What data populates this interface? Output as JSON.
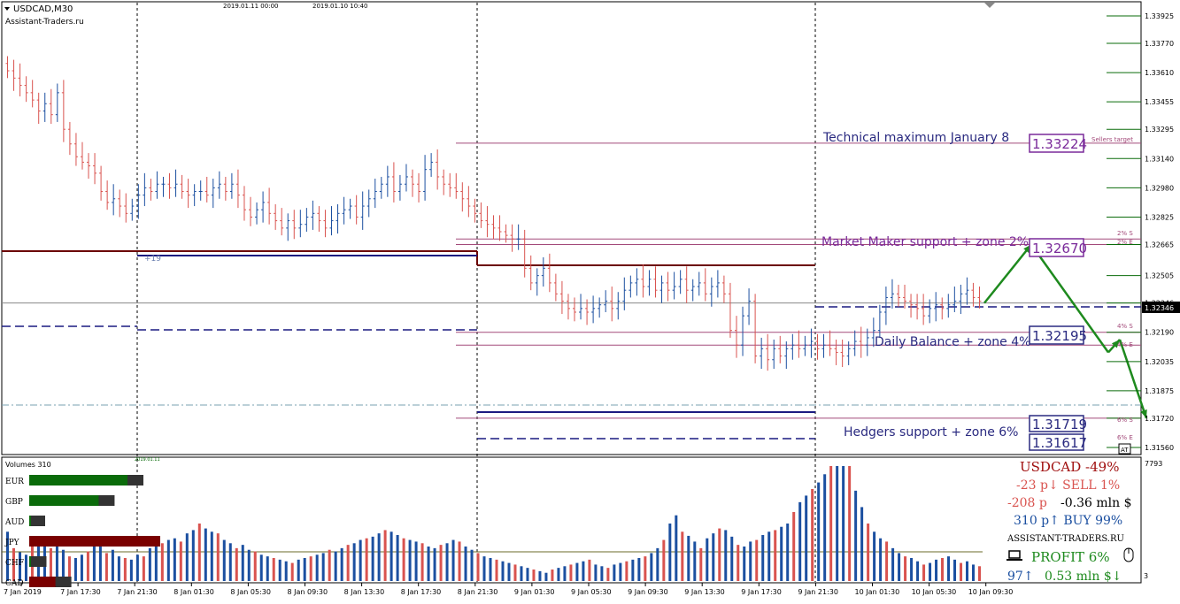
{
  "header": {
    "symbol": "USDCAD,M30",
    "site": "Assistant-Traders.ru",
    "date_mark_1": "2019.01.11 00:00",
    "date_mark_2": "2019.01.10 10:40",
    "sub_mark": "2019.01.11",
    "level_tag": "+19"
  },
  "chart_data": {
    "type": "candlestick",
    "symbol": "USDCAD",
    "timeframe": "M30",
    "ylim": [
      1.3148,
      1.3397
    ],
    "y_ticks": [
      1.3392,
      1.3377,
      1.3361,
      1.3345,
      1.333,
      1.3314,
      1.3298,
      1.3282,
      1.3267,
      1.325,
      1.3235,
      1.3219,
      1.3203,
      1.3187,
      1.3172,
      1.3156
    ],
    "y_tick_labels": [
      "1.33925",
      "1.33770",
      "1.33610",
      "1.33455",
      "1.33295",
      "1.33140",
      "1.32980",
      "1.32825",
      "1.32665",
      "1.32505",
      "1.32346",
      "1.32190",
      "1.32035",
      "1.31875",
      "1.31720",
      "1.31560"
    ],
    "current_price": "1.32346",
    "x_tick_labels": [
      "7 Jan 2019",
      "7 Jan 17:30",
      "7 Jan 21:30",
      "8 Jan 01:30",
      "8 Jan 05:30",
      "8 Jan 09:30",
      "8 Jan 13:30",
      "8 Jan 17:30",
      "8 Jan 21:30",
      "9 Jan 01:30",
      "9 Jan 05:30",
      "9 Jan 09:30",
      "9 Jan 13:30",
      "9 Jan 17:30",
      "9 Jan 21:30",
      "10 Jan 01:30",
      "10 Jan 05:30",
      "10 Jan 09:30"
    ],
    "closes": [
      1.3362,
      1.3358,
      1.3354,
      1.335,
      1.3346,
      1.334,
      1.3344,
      1.3338,
      1.335,
      1.333,
      1.3322,
      1.3315,
      1.3312,
      1.331,
      1.3306,
      1.3296,
      1.329,
      1.3292,
      1.3288,
      1.3284,
      1.3288,
      1.3294,
      1.3298,
      1.3296,
      1.33,
      1.33,
      1.3298,
      1.33,
      1.3296,
      1.3294,
      1.3296,
      1.3296,
      1.3294,
      1.3298,
      1.33,
      1.3296,
      1.33,
      1.3294,
      1.3286,
      1.3282,
      1.3286,
      1.329,
      1.3284,
      1.328,
      1.3276,
      1.328,
      1.3276,
      1.3278,
      1.3282,
      1.3284,
      1.328,
      1.3276,
      1.328,
      1.3284,
      1.3286,
      1.3288,
      1.3282,
      1.3288,
      1.3292,
      1.3296,
      1.33,
      1.3304,
      1.3296,
      1.33,
      1.3304,
      1.33,
      1.3296,
      1.3308,
      1.3312,
      1.3304,
      1.33,
      1.3298,
      1.3296,
      1.3292,
      1.3288,
      1.3284,
      1.328,
      1.3278,
      1.3276,
      1.3274,
      1.3272,
      1.327,
      1.327,
      1.3254,
      1.3246,
      1.325,
      1.3254,
      1.3246,
      1.324,
      1.3236,
      1.3232,
      1.323,
      1.3232,
      1.323,
      1.3232,
      1.3234,
      1.3236,
      1.3232,
      1.3236,
      1.3242,
      1.3246,
      1.3248,
      1.3244,
      1.3248,
      1.3242,
      1.3246,
      1.3242,
      1.3244,
      1.3248,
      1.3242,
      1.3244,
      1.3246,
      1.324,
      1.3244,
      1.3246,
      1.324,
      1.322,
      1.3212,
      1.3228,
      1.3236,
      1.3206,
      1.321,
      1.3204,
      1.321,
      1.3206,
      1.321,
      1.3212,
      1.321,
      1.3212,
      1.3214,
      1.321,
      1.3212,
      1.321,
      1.3208,
      1.3206,
      1.321,
      1.3214,
      1.3212,
      1.3216,
      1.322,
      1.323,
      1.3238,
      1.324,
      1.3238,
      1.3236,
      1.3234,
      1.3232,
      1.3228,
      1.3232,
      1.3234,
      1.3232,
      1.3234,
      1.3236,
      1.324,
      1.3242,
      1.3238,
      1.3236
    ],
    "levels": [
      {
        "label": "Technical maximum January 8",
        "price": "1.33224",
        "tag": "Sellers target",
        "color": "#a34a7a"
      },
      {
        "label": "Market Maker support + zone 2%",
        "price": "1.32670",
        "tag": "2% S",
        "tag2": "2% E",
        "color": "#a34a7a"
      },
      {
        "label": "Daily Balance + zone 4%",
        "price": "1.32195",
        "tag": "4% S",
        "tag2": "4% E",
        "color": "#a34a7a"
      },
      {
        "label": "Hedgers support + zone 6%",
        "price": "1.31719",
        "tag": "6% S",
        "tag2": "6% E",
        "color": "#a34a7a"
      },
      {
        "label": "",
        "price": "1.31617",
        "color": "#1a1a80"
      }
    ],
    "forecast_arrow_prices": [
      1.3235,
      1.3267,
      1.3208,
      1.3215,
      1.3172
    ]
  },
  "volumes": {
    "title": "Volumes 310",
    "right_max": "7793",
    "right_min": "3",
    "values": [
      60,
      40,
      35,
      32,
      48,
      52,
      46,
      40,
      44,
      38,
      30,
      28,
      32,
      36,
      50,
      42,
      34,
      38,
      30,
      28,
      26,
      32,
      30,
      40,
      42,
      46,
      50,
      52,
      48,
      58,
      62,
      70,
      64,
      60,
      58,
      50,
      46,
      40,
      44,
      38,
      36,
      32,
      30,
      28,
      26,
      24,
      22,
      26,
      28,
      30,
      32,
      34,
      38,
      36,
      40,
      44,
      46,
      50,
      52,
      54,
      58,
      62,
      60,
      56,
      52,
      50,
      48,
      46,
      42,
      40,
      44,
      46,
      50,
      48,
      42,
      38,
      34,
      30,
      28,
      26,
      24,
      22,
      20,
      18,
      16,
      14,
      12,
      10,
      14,
      16,
      18,
      20,
      22,
      24,
      26,
      20,
      18,
      16,
      20,
      22,
      24,
      26,
      28,
      30,
      34,
      40,
      50,
      70,
      80,
      60,
      55,
      48,
      40,
      52,
      58,
      64,
      62,
      54,
      44,
      42,
      48,
      50,
      56,
      60,
      62,
      66,
      70,
      84,
      96,
      104,
      112,
      120,
      130,
      150,
      160,
      170,
      140,
      110,
      90,
      70,
      60,
      52,
      48,
      40,
      34,
      30,
      28,
      24,
      20,
      22,
      26,
      28,
      30,
      26,
      22,
      24,
      20,
      18
    ],
    "colors": [
      "blue",
      "red"
    ],
    "currencies": [
      {
        "code": "EUR",
        "fill": 0.75,
        "color": "#0a6b0a"
      },
      {
        "code": "GBP",
        "fill": 0.53,
        "color": "#0a6b0a"
      },
      {
        "code": "AUD",
        "fill": 0.0,
        "color": "#0a6b0a"
      },
      {
        "code": "JPY",
        "fill": 1.0,
        "color": "#7a0000"
      },
      {
        "code": "CHF",
        "fill": 0.01,
        "color": "#0a6b0a"
      },
      {
        "code": "CAD",
        "fill": 0.2,
        "color": "#7a0000"
      }
    ]
  },
  "info_panel": {
    "title": "USDCAD -49%",
    "line1": "-23 p↓  SELL 1%",
    "line2_a": "-208 p",
    "line2_b": "-0.36 mln $",
    "line3": "310 p↑  BUY 99%",
    "site": "ASSISTANT-TRADERS.RU",
    "profit": "PROFIT 6%",
    "line_last_a": "97↑",
    "line_last_b": "0.53 mln $↓"
  },
  "colors": {
    "bull": "#1b4fa0",
    "bear": "#d9534f",
    "level": "#a34a7a",
    "dark_red": "#6b0000",
    "navy": "#1a1a80",
    "arrow": "#1e8a1e",
    "green_text": "#1e8a1e"
  }
}
